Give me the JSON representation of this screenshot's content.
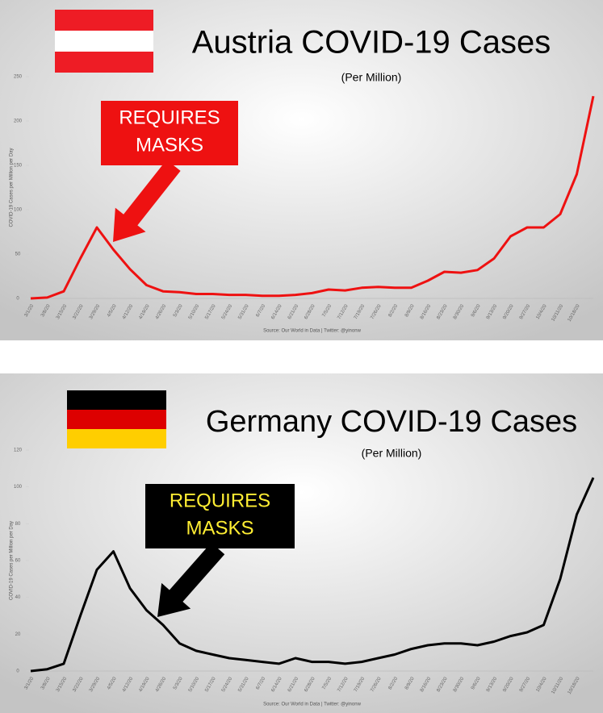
{
  "chart_data": [
    {
      "type": "line",
      "title": "Austria COVID-19 Cases",
      "subtitle": "(Per Million)",
      "annotation": [
        "REQUIRES",
        "MASKS"
      ],
      "ylabel": "COVID-19 Cases per Million per Day",
      "source": "Source: Our World in Data | Twitter: @yinonw",
      "categories": [
        "3/1/20",
        "3/8/20",
        "3/15/20",
        "3/22/20",
        "3/29/20",
        "4/5/20",
        "4/12/20",
        "4/19/20",
        "4/26/20",
        "5/3/20",
        "5/10/20",
        "5/17/20",
        "5/24/20",
        "5/31/20",
        "6/7/20",
        "6/14/20",
        "6/21/20",
        "6/28/20",
        "7/5/20",
        "7/12/20",
        "7/19/20",
        "7/26/20",
        "8/2/20",
        "8/9/20",
        "8/16/20",
        "8/23/20",
        "8/30/20",
        "9/6/20",
        "9/13/20",
        "9/20/20",
        "9/27/20",
        "10/4/20",
        "10/11/20",
        "10/18/20",
        null
      ],
      "values": [
        0,
        1,
        8,
        45,
        80,
        55,
        33,
        15,
        8,
        7,
        5,
        5,
        4,
        4,
        3,
        3,
        4,
        6,
        10,
        9,
        12,
        13,
        12,
        12,
        20,
        30,
        29,
        32,
        45,
        70,
        80,
        80,
        95,
        140,
        228
      ],
      "color": "#ee1111",
      "ylim": [
        0,
        250
      ],
      "yticks": [
        0,
        50,
        100,
        150,
        200,
        250
      ]
    },
    {
      "type": "line",
      "title": "Germany COVID-19 Cases",
      "subtitle": "(Per Million)",
      "annotation": [
        "REQUIRES",
        "MASKS"
      ],
      "ylabel": "COVID-19 Cases per Million per Day",
      "source": "Source: Our World in Data | Twitter: @yinonw",
      "categories": [
        "3/1/20",
        "3/8/20",
        "3/15/20",
        "3/22/20",
        "3/29/20",
        "4/5/20",
        "4/12/20",
        "4/19/20",
        "4/26/20",
        "5/3/20",
        "5/10/20",
        "5/17/20",
        "5/24/20",
        "5/31/20",
        "6/7/20",
        "6/14/20",
        "6/21/20",
        "6/28/20",
        "7/5/20",
        "7/12/20",
        "7/19/20",
        "7/26/20",
        "8/2/20",
        "8/9/20",
        "8/16/20",
        "8/23/20",
        "8/30/20",
        "9/6/20",
        "9/13/20",
        "9/20/20",
        "9/27/20",
        "10/4/20",
        "10/11/20",
        "10/18/20",
        null
      ],
      "values": [
        0,
        1,
        4,
        30,
        55,
        65,
        45,
        33,
        25,
        15,
        11,
        9,
        7,
        6,
        5,
        4,
        7,
        5,
        5,
        4,
        5,
        7,
        9,
        12,
        14,
        15,
        15,
        14,
        16,
        19,
        21,
        25,
        50,
        85,
        105
      ],
      "color": "#000000",
      "ylim": [
        0,
        120
      ],
      "yticks": [
        0,
        20,
        40,
        60,
        80,
        100,
        120
      ]
    }
  ]
}
